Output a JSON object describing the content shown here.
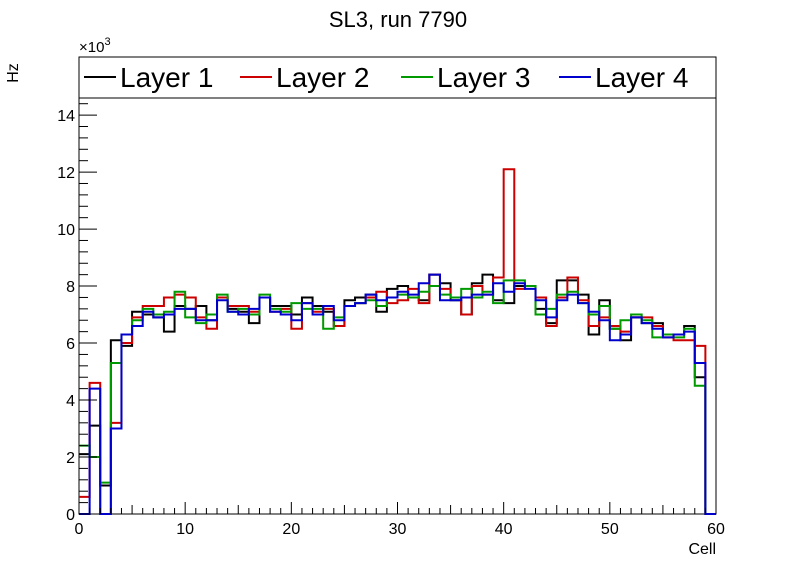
{
  "chart_data": {
    "type": "histogram",
    "title": "SL3, run 7790",
    "xlabel": "Cell",
    "ylabel": "Hz",
    "y_multiplier_label": "×10",
    "y_multiplier_exp": "3",
    "xlim": [
      0,
      60
    ],
    "ylim": [
      0,
      14.6
    ],
    "x_ticks": [
      0,
      10,
      20,
      30,
      40,
      50,
      60
    ],
    "y_ticks": [
      0,
      2,
      4,
      6,
      8,
      10,
      12,
      14
    ],
    "bin_edges_start": 0,
    "bin_width": 1,
    "legend_position": "top (full width, above plot area)",
    "series": [
      {
        "name": "Layer 1",
        "color": "#000000",
        "values": [
          2.1,
          3.1,
          1.0,
          6.1,
          5.9,
          7.1,
          7.0,
          6.9,
          6.4,
          7.3,
          7.2,
          7.3,
          6.8,
          7.6,
          7.2,
          7.1,
          6.7,
          7.6,
          7.3,
          7.3,
          7.0,
          7.6,
          7.3,
          7.1,
          6.6,
          7.5,
          7.6,
          7.7,
          7.1,
          7.9,
          8.0,
          7.6,
          7.5,
          8.4,
          8.1,
          7.5,
          7.0,
          8.1,
          8.4,
          7.5,
          7.4,
          8.0,
          8.0,
          7.2,
          6.7,
          8.2,
          8.2,
          7.7,
          6.3,
          7.5,
          6.5,
          6.1,
          6.9,
          6.7,
          6.7,
          6.3,
          6.3,
          6.6,
          4.8,
          0
        ]
      },
      {
        "name": "Layer 2",
        "color": "#cc0000",
        "values": [
          0.6,
          4.6,
          0,
          3.2,
          6.0,
          6.9,
          7.3,
          7.3,
          7.6,
          7.7,
          7.6,
          6.9,
          6.5,
          7.6,
          7.3,
          7.3,
          7.1,
          7.6,
          7.1,
          7.2,
          6.5,
          7.4,
          7.1,
          7.2,
          6.6,
          7.3,
          7.4,
          7.6,
          7.8,
          7.4,
          7.5,
          7.9,
          7.4,
          8.4,
          7.9,
          7.6,
          7.0,
          8.0,
          7.7,
          8.3,
          12.1,
          7.9,
          8.0,
          7.6,
          6.6,
          7.6,
          8.3,
          7.5,
          6.6,
          6.9,
          6.6,
          6.4,
          6.9,
          6.9,
          6.6,
          6.2,
          6.1,
          6.1,
          5.9,
          0
        ]
      },
      {
        "name": "Layer 3",
        "color": "#009900",
        "values": [
          2.4,
          2.0,
          1.1,
          5.3,
          6.3,
          6.8,
          7.2,
          7.0,
          7.1,
          7.8,
          6.9,
          6.7,
          7.0,
          7.7,
          7.1,
          7.2,
          7.0,
          7.7,
          7.2,
          7.1,
          7.4,
          7.2,
          7.2,
          6.5,
          6.9,
          7.3,
          7.4,
          7.5,
          7.3,
          7.6,
          7.7,
          7.6,
          7.8,
          8.0,
          7.7,
          7.6,
          7.9,
          7.6,
          7.8,
          7.4,
          8.2,
          8.2,
          8.0,
          7.0,
          7.2,
          7.7,
          7.8,
          7.4,
          7.0,
          7.3,
          6.5,
          6.8,
          7.0,
          6.8,
          6.2,
          6.3,
          6.2,
          6.5,
          4.5,
          0
        ]
      },
      {
        "name": "Layer 4",
        "color": "#0000cc",
        "values": [
          0,
          4.4,
          0,
          3.0,
          6.3,
          6.6,
          7.1,
          6.9,
          7.0,
          7.2,
          7.2,
          6.8,
          6.8,
          7.5,
          7.1,
          7.0,
          7.2,
          7.6,
          7.1,
          7.0,
          6.8,
          7.4,
          7.0,
          7.3,
          6.8,
          7.3,
          7.4,
          7.7,
          7.5,
          7.6,
          7.8,
          7.7,
          8.1,
          8.4,
          7.5,
          7.5,
          7.6,
          7.7,
          7.7,
          8.1,
          7.8,
          8.1,
          7.9,
          7.5,
          6.9,
          7.5,
          7.7,
          7.4,
          7.1,
          6.8,
          6.1,
          6.3,
          6.9,
          6.7,
          6.5,
          6.2,
          6.3,
          6.4,
          5.3,
          0
        ]
      }
    ]
  }
}
